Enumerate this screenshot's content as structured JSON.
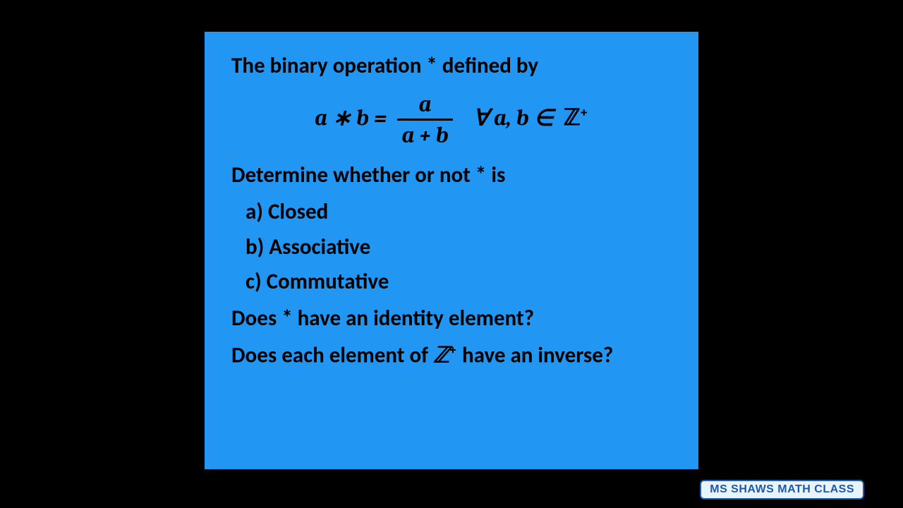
{
  "slide": {
    "bg_color": "#2196f3",
    "text_color": "#000000",
    "title": "The binary operation * defined by",
    "equation": {
      "lhs": "a ∗ b =",
      "numerator": "a",
      "denominator": "a + b",
      "rhs_prefix": "∀ a, b ∈",
      "set_symbol": "ℤ",
      "set_sup": "+"
    },
    "determine": "Determine whether or not * is",
    "options": [
      "a) Closed",
      "b) Associative",
      "c) Commutative"
    ],
    "q_identity": "Does * have an identity element?",
    "q_inverse_pre": "Does each element of ",
    "q_inverse_set": "ℤ",
    "q_inverse_sup": "+",
    "q_inverse_post": " have an inverse?"
  },
  "watermark": "MS SHAWS MATH CLASS"
}
